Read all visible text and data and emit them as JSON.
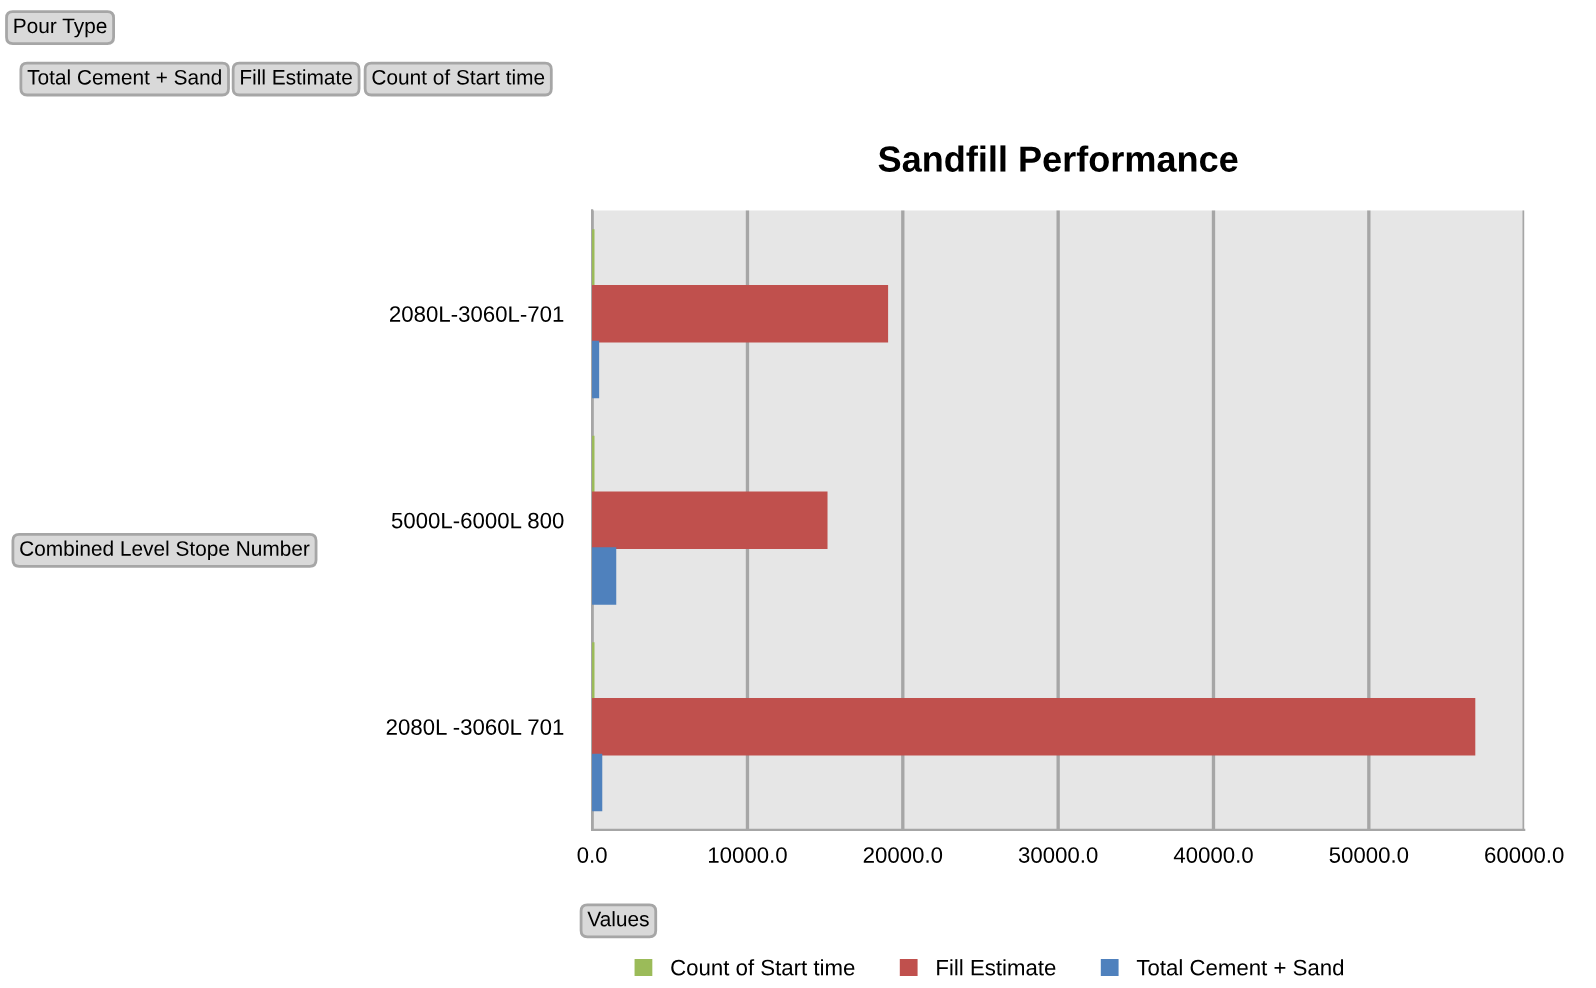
{
  "chart_data": {
    "type": "bar",
    "orientation": "horizontal",
    "title": "Sandfill Performance",
    "ylabel": "Combined Level Stope Number",
    "annotations": [
      "Pour Type",
      "Total Cement + Sand",
      "Fill Estimate",
      "Count of Start time",
      "Values"
    ],
    "categories": [
      "2080L-3060L-701",
      "5000L-6000L 800",
      "2080L -3060L 701"
    ],
    "series": [
      {
        "name": "Count of Start time",
        "color": "#9bbb59",
        "values": [
          100,
          100,
          100
        ]
      },
      {
        "name": "Fill Estimate",
        "color": "#c0504d",
        "values": [
          19000,
          15100,
          56800
        ]
      },
      {
        "name": "Total Cement + Sand",
        "color": "#4f81bd",
        "values": [
          400,
          1500,
          600
        ]
      }
    ],
    "xlim": [
      0,
      60000
    ],
    "xticks": [
      {
        "value": 0,
        "label": "0.0"
      },
      {
        "value": 10000,
        "label": "10000.0"
      },
      {
        "value": 20000,
        "label": "20000.0"
      },
      {
        "value": 30000,
        "label": "30000.0"
      },
      {
        "value": 40000,
        "label": "40000.0"
      },
      {
        "value": 50000,
        "label": "50000.0"
      },
      {
        "value": 60000,
        "label": "60000.0"
      }
    ],
    "grid": "x",
    "legend": "bottom"
  }
}
